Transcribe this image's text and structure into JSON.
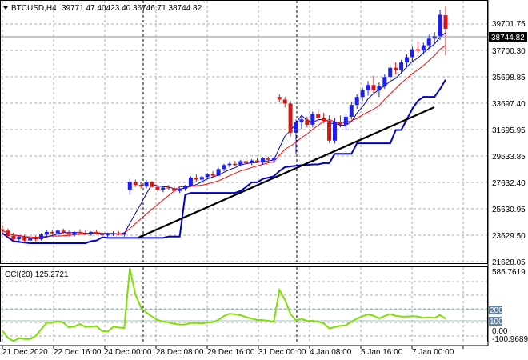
{
  "header": {
    "symbol": "BTCUSD,H4",
    "ohlc": "39771.47 40423.40 36746.71 38744.82"
  },
  "price_axis": {
    "labels": [
      "39701.75",
      "37700.30",
      "35698.85",
      "33697.40",
      "31695.95",
      "29633.85",
      "27632.40",
      "25630.95",
      "23629.50",
      "21628.05"
    ],
    "current_price": "38744.82"
  },
  "cci": {
    "label": "CCI(20) 125.2721",
    "axis_labels": {
      "top": "585.7619",
      "level_200": "200",
      "level_100": "100",
      "zero": "0.00",
      "bottom": "-100.9689"
    }
  },
  "time_axis": {
    "labels": [
      "21 Dec 2020",
      "22 Dec 16:00",
      "24 Dec 00:00",
      "28 Dec 08:00",
      "29 Dec 16:00",
      "31 Dec 00:00",
      "4 Jan 08:00",
      "5 Jan 16:00",
      "7 Jan 00:00"
    ]
  },
  "colors": {
    "bull": "#1e1ef0",
    "bear": "#d81414",
    "grid": "#a9a9a9",
    "envelope_blue": "#0000cd",
    "ma_red": "#ff0000",
    "trendline": "#000000",
    "cci_line": "#7ee000",
    "level_line": "#a0c0c8",
    "badge_bg": "#6080a0"
  },
  "chart_data": {
    "type": "candlestick",
    "price_range": [
      21100,
      40800
    ],
    "cci_range": [
      -100.9689,
      585.7619
    ],
    "cci_levels": [
      200,
      100,
      0
    ],
    "candles": [
      [
        23600,
        23900,
        23300,
        23500
      ],
      [
        23500,
        23650,
        23000,
        23100
      ],
      [
        23100,
        23350,
        22700,
        22850
      ],
      [
        22850,
        23150,
        22650,
        23050
      ],
      [
        23050,
        23200,
        22600,
        22750
      ],
      [
        22750,
        22950,
        22550,
        22900
      ],
      [
        22900,
        23100,
        22700,
        22850
      ],
      [
        22850,
        23300,
        22750,
        23200
      ],
      [
        23200,
        23500,
        23000,
        23400
      ],
      [
        23400,
        23550,
        23150,
        23300
      ],
      [
        23300,
        23600,
        23200,
        23500
      ],
      [
        23500,
        23650,
        23250,
        23350
      ],
      [
        23350,
        23500,
        23100,
        23200
      ],
      [
        23200,
        23450,
        23050,
        23400
      ],
      [
        23400,
        23600,
        23250,
        23300
      ],
      [
        23300,
        23500,
        23150,
        23250
      ],
      [
        23250,
        23450,
        23100,
        23400
      ],
      [
        23400,
        23550,
        23200,
        23250
      ],
      [
        23250,
        23400,
        23050,
        23150
      ],
      [
        23150,
        23350,
        22950,
        23250
      ],
      [
        23250,
        23450,
        23100,
        23300
      ],
      [
        23300,
        23450,
        23150,
        23200
      ],
      [
        23200,
        23400,
        23050,
        23350
      ],
      [
        26600,
        27400,
        26200,
        27200
      ],
      [
        27200,
        27350,
        26800,
        26950
      ],
      [
        26950,
        27150,
        26700,
        26850
      ],
      [
        26850,
        27300,
        26700,
        27150
      ],
      [
        27150,
        27250,
        26750,
        26800
      ],
      [
        26800,
        26950,
        26500,
        26600
      ],
      [
        26600,
        26850,
        26400,
        26750
      ],
      [
        26750,
        26950,
        26550,
        26700
      ],
      [
        26700,
        26850,
        26400,
        26500
      ],
      [
        26500,
        26750,
        26350,
        26650
      ],
      [
        26650,
        26950,
        26500,
        26900
      ],
      [
        26900,
        27600,
        26800,
        27500
      ],
      [
        27500,
        27750,
        27200,
        27350
      ],
      [
        27350,
        27650,
        27150,
        27550
      ],
      [
        27550,
        27850,
        27400,
        27750
      ],
      [
        27750,
        28000,
        27500,
        27650
      ],
      [
        27650,
        28250,
        27600,
        28150
      ],
      [
        28150,
        28550,
        28000,
        28450
      ],
      [
        28450,
        28700,
        28300,
        28550
      ],
      [
        28550,
        28750,
        28350,
        28450
      ],
      [
        28450,
        28850,
        28400,
        28750
      ],
      [
        28750,
        28950,
        28500,
        28600
      ],
      [
        28600,
        28900,
        28450,
        28800
      ],
      [
        28800,
        29000,
        28600,
        28650
      ],
      [
        28650,
        29050,
        28500,
        28950
      ],
      [
        28950,
        29100,
        28700,
        28850
      ],
      [
        28850,
        29100,
        28600,
        28950
      ],
      [
        33600,
        33800,
        33200,
        33400
      ],
      [
        33400,
        33600,
        32800,
        33100
      ],
      [
        33100,
        33300,
        30600,
        30900
      ],
      [
        30900,
        31900,
        29300,
        31700
      ],
      [
        31700,
        32100,
        31200,
        31900
      ],
      [
        31900,
        32100,
        31300,
        31500
      ],
      [
        31500,
        32500,
        31300,
        32300
      ],
      [
        32300,
        32700,
        31700,
        32000
      ],
      [
        32000,
        32400,
        31600,
        31800
      ],
      [
        31800,
        32200,
        30100,
        30300
      ],
      [
        30300,
        32000,
        30100,
        31700
      ],
      [
        31700,
        32200,
        31300,
        31500
      ],
      [
        31500,
        32300,
        31100,
        32100
      ],
      [
        32100,
        33200,
        31900,
        33000
      ],
      [
        33000,
        33800,
        32700,
        33600
      ],
      [
        33600,
        34300,
        33300,
        34100
      ],
      [
        34100,
        34800,
        33700,
        34500
      ],
      [
        34500,
        35200,
        33900,
        34100
      ],
      [
        34100,
        34700,
        33600,
        34400
      ],
      [
        34400,
        35300,
        34200,
        35100
      ],
      [
        35100,
        36000,
        34900,
        35800
      ],
      [
        35800,
        36200,
        35300,
        35600
      ],
      [
        35600,
        36400,
        35400,
        36200
      ],
      [
        36200,
        36800,
        35800,
        36600
      ],
      [
        36600,
        37400,
        36300,
        37200
      ],
      [
        37200,
        37800,
        36900,
        37100
      ],
      [
        37100,
        37700,
        36800,
        37500
      ],
      [
        37500,
        38300,
        37200,
        38000
      ],
      [
        38000,
        38500,
        37600,
        38200
      ],
      [
        38200,
        40200,
        37900,
        39800
      ],
      [
        39771.47,
        40423.4,
        36746.71,
        38744.82
      ]
    ]
  }
}
